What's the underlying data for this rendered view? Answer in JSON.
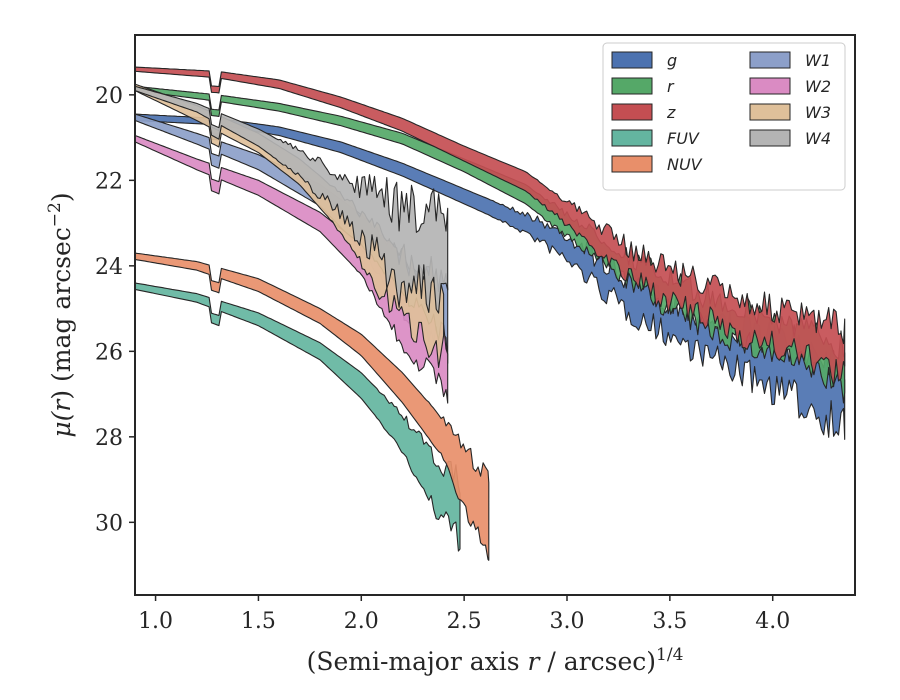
{
  "chart_data": {
    "type": "area",
    "xlabel_parts": [
      "(Semi-major axis ",
      "r",
      " / arcsec)",
      "1/4"
    ],
    "ylabel_parts": [
      "μ(",
      "r",
      ") (mag arcsec",
      "−2",
      ")"
    ],
    "xlim": [
      0.9,
      4.4
    ],
    "ylim": [
      31.7,
      18.6
    ],
    "y_inverted": true,
    "grid": false,
    "legend_position": "top-right",
    "legend_columns": 2,
    "x_ticks": [
      1.0,
      1.5,
      2.0,
      2.5,
      3.0,
      3.5,
      4.0
    ],
    "x_tick_labels": [
      "1.0",
      "1.5",
      "2.0",
      "2.5",
      "3.0",
      "3.5",
      "4.0"
    ],
    "y_ticks": [
      20,
      22,
      24,
      26,
      28,
      30
    ],
    "y_tick_labels": [
      "20",
      "22",
      "24",
      "26",
      "28",
      "30"
    ],
    "series": [
      {
        "name": "g",
        "color": "#4c72b0",
        "x_start": 0.9,
        "x_end": 4.35,
        "noise_start": 2.6,
        "upper": [
          [
            0.9,
            20.45
          ],
          [
            1.3,
            20.55
          ],
          [
            1.6,
            20.75
          ],
          [
            1.9,
            21.1
          ],
          [
            2.2,
            21.6
          ],
          [
            2.5,
            22.2
          ],
          [
            2.8,
            22.8
          ],
          [
            3.0,
            23.3
          ],
          [
            3.3,
            24.4
          ],
          [
            3.6,
            25.1
          ],
          [
            3.9,
            25.6
          ],
          [
            4.2,
            26.0
          ],
          [
            4.35,
            26.3
          ]
        ],
        "lower": [
          [
            0.9,
            20.6
          ],
          [
            1.3,
            20.7
          ],
          [
            1.6,
            20.95
          ],
          [
            1.9,
            21.35
          ],
          [
            2.2,
            21.9
          ],
          [
            2.5,
            22.55
          ],
          [
            2.8,
            23.2
          ],
          [
            3.0,
            23.8
          ],
          [
            3.3,
            25.0
          ],
          [
            3.6,
            25.8
          ],
          [
            3.9,
            26.5
          ],
          [
            4.2,
            27.2
          ],
          [
            4.35,
            27.6
          ]
        ]
      },
      {
        "name": "r",
        "color": "#55a868",
        "x_start": 0.9,
        "x_end": 4.35,
        "noise_start": 2.8,
        "upper": [
          [
            0.9,
            19.8
          ],
          [
            1.3,
            20.0
          ],
          [
            1.6,
            20.2
          ],
          [
            1.9,
            20.5
          ],
          [
            2.2,
            20.9
          ],
          [
            2.5,
            21.5
          ],
          [
            2.8,
            22.1
          ],
          [
            3.0,
            22.8
          ],
          [
            3.3,
            23.8
          ],
          [
            3.6,
            24.6
          ],
          [
            3.9,
            25.1
          ],
          [
            4.2,
            25.6
          ],
          [
            4.35,
            25.9
          ]
        ],
        "lower": [
          [
            0.9,
            19.9
          ],
          [
            1.3,
            20.15
          ],
          [
            1.6,
            20.38
          ],
          [
            1.9,
            20.72
          ],
          [
            2.2,
            21.15
          ],
          [
            2.5,
            21.8
          ],
          [
            2.8,
            22.55
          ],
          [
            3.0,
            23.3
          ],
          [
            3.3,
            24.3
          ],
          [
            3.6,
            25.2
          ],
          [
            3.9,
            25.8
          ],
          [
            4.2,
            26.3
          ],
          [
            4.35,
            26.8
          ]
        ]
      },
      {
        "name": "z",
        "color": "#c44e52",
        "x_start": 0.9,
        "x_end": 4.35,
        "noise_start": 2.8,
        "upper": [
          [
            0.9,
            19.35
          ],
          [
            1.3,
            19.45
          ],
          [
            1.6,
            19.65
          ],
          [
            1.9,
            20.05
          ],
          [
            2.2,
            20.55
          ],
          [
            2.5,
            21.2
          ],
          [
            2.8,
            21.8
          ],
          [
            3.0,
            22.5
          ],
          [
            3.3,
            23.6
          ],
          [
            3.6,
            24.3
          ],
          [
            3.9,
            24.9
          ],
          [
            4.2,
            25.3
          ],
          [
            4.35,
            25.5
          ]
        ],
        "lower": [
          [
            0.9,
            19.45
          ],
          [
            1.3,
            19.6
          ],
          [
            1.6,
            19.85
          ],
          [
            1.9,
            20.3
          ],
          [
            2.2,
            20.85
          ],
          [
            2.5,
            21.55
          ],
          [
            2.8,
            22.25
          ],
          [
            3.0,
            23.0
          ],
          [
            3.3,
            24.2
          ],
          [
            3.6,
            25.0
          ],
          [
            3.9,
            25.6
          ],
          [
            4.2,
            26.1
          ],
          [
            4.35,
            26.5
          ]
        ]
      },
      {
        "name": "FUV",
        "color": "#64b5a0",
        "x_start": 0.9,
        "x_end": 2.48,
        "noise_start": 2.05,
        "upper": [
          [
            0.9,
            24.4
          ],
          [
            1.2,
            24.65
          ],
          [
            1.5,
            25.1
          ],
          [
            1.8,
            25.8
          ],
          [
            2.0,
            26.5
          ],
          [
            2.2,
            27.5
          ],
          [
            2.35,
            28.5
          ],
          [
            2.48,
            29.1
          ]
        ],
        "lower": [
          [
            0.9,
            24.55
          ],
          [
            1.2,
            24.85
          ],
          [
            1.5,
            25.4
          ],
          [
            1.8,
            26.2
          ],
          [
            2.0,
            27.1
          ],
          [
            2.2,
            28.3
          ],
          [
            2.35,
            29.6
          ],
          [
            2.48,
            30.3
          ]
        ]
      },
      {
        "name": "NUV",
        "color": "#e88f6a",
        "x_start": 0.9,
        "x_end": 2.62,
        "noise_start": 2.3,
        "upper": [
          [
            0.9,
            23.7
          ],
          [
            1.2,
            23.9
          ],
          [
            1.5,
            24.3
          ],
          [
            1.8,
            25.0
          ],
          [
            2.0,
            25.6
          ],
          [
            2.2,
            26.5
          ],
          [
            2.4,
            27.6
          ],
          [
            2.55,
            28.6
          ],
          [
            2.62,
            28.9
          ]
        ],
        "lower": [
          [
            0.9,
            23.85
          ],
          [
            1.2,
            24.1
          ],
          [
            1.5,
            24.6
          ],
          [
            1.8,
            25.35
          ],
          [
            2.0,
            26.1
          ],
          [
            2.2,
            27.2
          ],
          [
            2.4,
            28.5
          ],
          [
            2.55,
            30.2
          ],
          [
            2.62,
            30.5
          ]
        ]
      },
      {
        "name": "W1",
        "color": "#8c9fc9",
        "x_start": 0.9,
        "x_end": 2.42,
        "noise_start": 1.95,
        "upper": [
          [
            0.9,
            20.45
          ],
          [
            1.2,
            20.9
          ],
          [
            1.5,
            21.4
          ],
          [
            1.8,
            22.1
          ],
          [
            2.0,
            22.8
          ],
          [
            2.2,
            23.8
          ],
          [
            2.42,
            24.6
          ]
        ],
        "lower": [
          [
            0.9,
            20.6
          ],
          [
            1.2,
            21.15
          ],
          [
            1.5,
            21.75
          ],
          [
            1.8,
            22.6
          ],
          [
            2.0,
            23.6
          ],
          [
            2.2,
            25.0
          ],
          [
            2.42,
            25.8
          ]
        ]
      },
      {
        "name": "W2",
        "color": "#da8bc3",
        "x_start": 0.9,
        "x_end": 2.42,
        "noise_start": 1.95,
        "upper": [
          [
            0.9,
            20.95
          ],
          [
            1.2,
            21.5
          ],
          [
            1.5,
            22.0
          ],
          [
            1.8,
            22.75
          ],
          [
            2.0,
            23.5
          ],
          [
            2.2,
            24.6
          ],
          [
            2.42,
            25.8
          ]
        ],
        "lower": [
          [
            0.9,
            21.1
          ],
          [
            1.2,
            21.75
          ],
          [
            1.5,
            22.35
          ],
          [
            1.8,
            23.2
          ],
          [
            2.0,
            24.2
          ],
          [
            2.2,
            25.8
          ],
          [
            2.42,
            26.8
          ]
        ]
      },
      {
        "name": "W3",
        "color": "#dfc09a",
        "x_start": 0.9,
        "x_end": 2.4,
        "noise_start": 1.8,
        "upper": [
          [
            0.9,
            19.75
          ],
          [
            1.2,
            20.25
          ],
          [
            1.5,
            20.9
          ],
          [
            1.7,
            21.5
          ],
          [
            1.9,
            22.3
          ],
          [
            2.1,
            23.3
          ],
          [
            2.25,
            24.0
          ],
          [
            2.4,
            24.4
          ]
        ],
        "lower": [
          [
            0.9,
            19.9
          ],
          [
            1.2,
            20.6
          ],
          [
            1.5,
            21.35
          ],
          [
            1.7,
            22.1
          ],
          [
            1.9,
            23.2
          ],
          [
            2.1,
            24.6
          ],
          [
            2.25,
            25.3
          ],
          [
            2.4,
            25.8
          ]
        ]
      },
      {
        "name": "W4",
        "color": "#b4b4b4",
        "x_start": 0.9,
        "x_end": 2.42,
        "noise_start": 1.55,
        "upper": [
          [
            0.9,
            19.8
          ],
          [
            1.2,
            20.2
          ],
          [
            1.5,
            20.8
          ],
          [
            1.7,
            21.3
          ],
          [
            1.9,
            21.9
          ],
          [
            2.05,
            22.3
          ],
          [
            2.2,
            22.7
          ],
          [
            2.42,
            22.9
          ]
        ],
        "lower": [
          [
            0.9,
            19.9
          ],
          [
            1.2,
            20.4
          ],
          [
            1.5,
            21.2
          ],
          [
            1.7,
            21.9
          ],
          [
            1.9,
            22.7
          ],
          [
            2.05,
            23.5
          ],
          [
            2.2,
            24.3
          ],
          [
            2.42,
            24.5
          ]
        ]
      }
    ]
  }
}
